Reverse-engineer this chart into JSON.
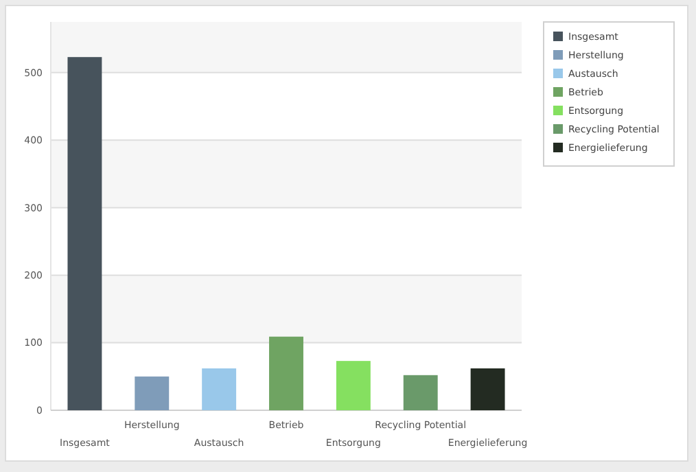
{
  "chart_data": {
    "type": "bar",
    "categories": [
      "Insgesamt",
      "Herstellung",
      "Austausch",
      "Betrieb",
      "Entsorgung",
      "Recycling Potential",
      "Energielieferung"
    ],
    "series": [
      {
        "name": "Insgesamt",
        "color": "#47535c",
        "values": [
          523,
          null,
          null,
          null,
          null,
          null,
          null
        ]
      },
      {
        "name": "Herstellung",
        "color": "#7f9cb9",
        "values": [
          null,
          50,
          null,
          null,
          null,
          null,
          null
        ]
      },
      {
        "name": "Austausch",
        "color": "#99c8ea",
        "values": [
          null,
          null,
          62,
          null,
          null,
          null,
          null
        ]
      },
      {
        "name": "Betrieb",
        "color": "#6fa462",
        "values": [
          null,
          null,
          null,
          109,
          null,
          null,
          null
        ]
      },
      {
        "name": "Entsorgung",
        "color": "#85e060",
        "values": [
          null,
          null,
          null,
          null,
          73,
          null,
          null
        ]
      },
      {
        "name": "Recycling Potential",
        "color": "#6a9a6a",
        "values": [
          null,
          null,
          null,
          null,
          null,
          52,
          null
        ]
      },
      {
        "name": "Energielieferung",
        "color": "#232b22",
        "values": [
          null,
          null,
          null,
          null,
          null,
          null,
          62
        ]
      }
    ],
    "ylim": [
      0,
      575
    ],
    "yticks": [
      0,
      100,
      200,
      300,
      400,
      500
    ],
    "grid": "y",
    "legend": "top right"
  }
}
